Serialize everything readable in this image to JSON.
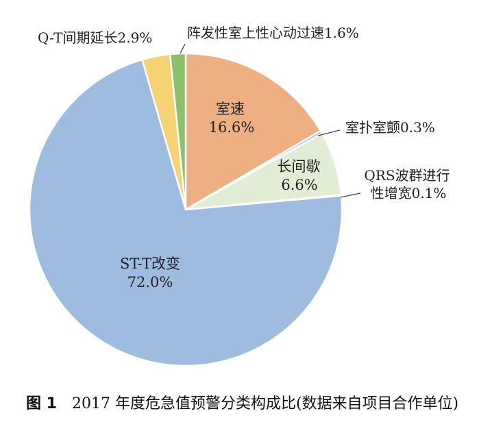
{
  "chart_data": {
    "type": "pie",
    "slices": [
      {
        "label": "室速",
        "value": 16.6,
        "value_label": "16.6%",
        "color": "#EEAF83"
      },
      {
        "label": "室扑室颤",
        "value": 0.3,
        "value_label": "0.3%",
        "color": "#9DBCE0"
      },
      {
        "label": "长间歇",
        "value": 6.6,
        "value_label": "6.6%",
        "color": "#E2EDD6"
      },
      {
        "label": "QRS波群进行性增宽",
        "value": 0.1,
        "value_label": "0.1%",
        "color": "#9DBCE0"
      },
      {
        "label": "ST-T改变",
        "value": 72.0,
        "value_label": "72.0%",
        "color": "#9DBCE0"
      },
      {
        "label": "Q-T间期延长",
        "value": 2.9,
        "value_label": "2.9%",
        "color": "#F6D372"
      },
      {
        "label": "阵发性室上性心动过速",
        "value": 1.6,
        "value_label": "1.6%",
        "color": "#8DC06C"
      }
    ],
    "labels": {
      "vt": {
        "name": "室速",
        "value": "16.6%"
      },
      "vf": "室扑室颤0.3%",
      "pause": {
        "name": "长间歇",
        "value": "6.6%"
      },
      "qrs": {
        "line1": "QRS波群进行",
        "line2": "性增宽0.1%"
      },
      "stt": {
        "name": "ST-T改变",
        "value": "72.0%"
      },
      "qt": "Q-T间期延长2.9%",
      "psvt": "阵发性室上性心动过速1.6%"
    }
  },
  "caption": {
    "figure_number": "图 1",
    "text": "2017 年度危急值预警分类构成比(数据来自项目合作单位)"
  }
}
